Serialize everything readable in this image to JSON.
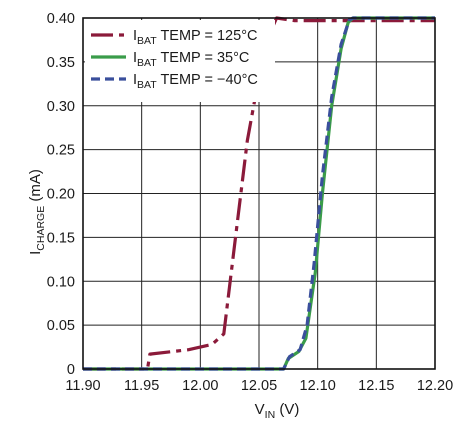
{
  "chart_data": {
    "type": "line",
    "title": "",
    "xlabel": {
      "main": "V",
      "sub": "IN",
      "unit": " (V)"
    },
    "ylabel": {
      "main": "I",
      "sub": "CHARGE",
      "unit": " (mA)"
    },
    "xlim": [
      11.9,
      12.2
    ],
    "ylim": [
      0,
      0.4
    ],
    "x_ticks": [
      11.9,
      11.95,
      12.0,
      12.05,
      12.1,
      12.15,
      12.2
    ],
    "x_tick_labels": [
      "11.90",
      "11.95",
      "12.00",
      "12.05",
      "12.10",
      "12.15",
      "12.20"
    ],
    "y_ticks": [
      0,
      0.05,
      0.1,
      0.15,
      0.2,
      0.25,
      0.3,
      0.35,
      0.4
    ],
    "y_tick_labels": [
      "0",
      "0.05",
      "0.10",
      "0.15",
      "0.20",
      "0.25",
      "0.30",
      "0.35",
      "0.40"
    ],
    "grid": true,
    "legend_position": "top-left",
    "series": [
      {
        "name": {
          "main": "I",
          "sub": "BAT",
          "rest": " TEMP = 125°C"
        },
        "color": "#8b1a3a",
        "style": "dash-dot",
        "points": [
          [
            11.9,
            0.0
          ],
          [
            11.955,
            0.0
          ],
          [
            11.957,
            0.017
          ],
          [
            11.99,
            0.022
          ],
          [
            12.01,
            0.028
          ],
          [
            12.02,
            0.04
          ],
          [
            12.03,
            0.15
          ],
          [
            12.04,
            0.26
          ],
          [
            12.055,
            0.37
          ],
          [
            12.065,
            0.4
          ],
          [
            12.08,
            0.397
          ],
          [
            12.2,
            0.397
          ]
        ]
      },
      {
        "name": {
          "main": "I",
          "sub": "BAT",
          "rest": " TEMP = 35°C"
        },
        "color": "#3a9c4a",
        "style": "solid",
        "points": [
          [
            11.9,
            0.0
          ],
          [
            12.071,
            0.0
          ],
          [
            12.075,
            0.012
          ],
          [
            12.084,
            0.02
          ],
          [
            12.09,
            0.035
          ],
          [
            12.098,
            0.11
          ],
          [
            12.104,
            0.2
          ],
          [
            12.112,
            0.3
          ],
          [
            12.12,
            0.365
          ],
          [
            12.126,
            0.395
          ],
          [
            12.13,
            0.4
          ],
          [
            12.2,
            0.4
          ]
        ]
      },
      {
        "name": {
          "main": "I",
          "sub": "BAT",
          "rest": " TEMP = −40°C"
        },
        "color": "#3a4f9c",
        "style": "dashed",
        "points": [
          [
            11.9,
            0.0
          ],
          [
            12.071,
            0.0
          ],
          [
            12.076,
            0.014
          ],
          [
            12.085,
            0.022
          ],
          [
            12.091,
            0.05
          ],
          [
            12.097,
            0.12
          ],
          [
            12.104,
            0.22
          ],
          [
            12.112,
            0.31
          ],
          [
            12.12,
            0.37
          ],
          [
            12.127,
            0.398
          ],
          [
            12.13,
            0.4
          ],
          [
            12.2,
            0.4
          ]
        ]
      }
    ]
  }
}
